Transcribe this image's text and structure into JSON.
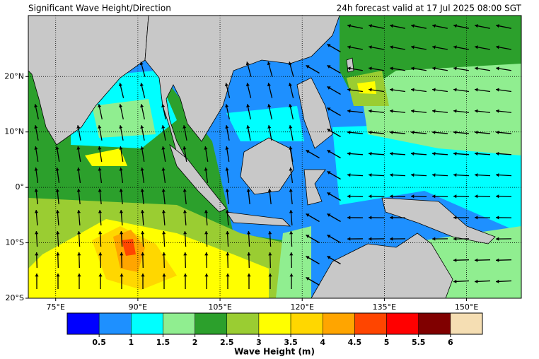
{
  "map_data": {
    "title": "Significant Wave Height/Direction",
    "subtitle": "24h forecast valid at 17 Jul 2025 08:00 SGT",
    "xlim": [
      70,
      160
    ],
    "ylim": [
      -20,
      31
    ],
    "xticks": [
      {
        "value": 75,
        "label": "75°E"
      },
      {
        "value": 90,
        "label": "90°E"
      },
      {
        "value": 105,
        "label": "105°E"
      },
      {
        "value": 120,
        "label": "120°E"
      },
      {
        "value": 135,
        "label": "135°E"
      },
      {
        "value": 150,
        "label": "150°E"
      }
    ],
    "yticks": [
      {
        "value": 20,
        "label": "20°N"
      },
      {
        "value": 10,
        "label": "10°N"
      },
      {
        "value": 0,
        "label": "0°"
      },
      {
        "value": -10,
        "label": "10°S"
      },
      {
        "value": -20,
        "label": "20°S"
      }
    ],
    "grid": true,
    "colorbar": {
      "label": "Wave Height (m)",
      "colors": [
        "#0000ff",
        "#1e90ff",
        "#00ffff",
        "#90ee90",
        "#2ca02c",
        "#9acd32",
        "#ffff00",
        "#ffd700",
        "#ffa500",
        "#ff4500",
        "#ff0000",
        "#800000",
        "#f5deb3"
      ],
      "ticks": [
        0.5,
        1,
        1.5,
        2,
        2.5,
        3,
        3.5,
        4,
        4.5,
        5,
        5.5,
        6
      ]
    }
  }
}
